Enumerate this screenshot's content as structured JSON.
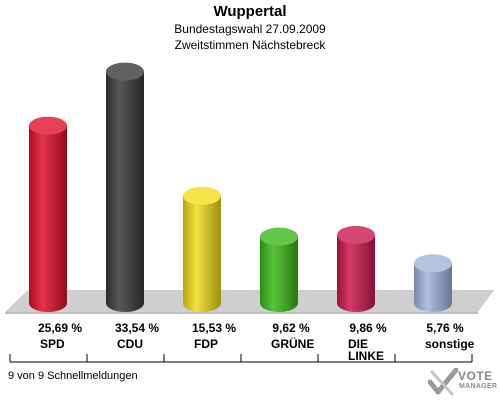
{
  "chart_data": {
    "type": "bar",
    "title": "Wuppertal",
    "subtitle_lines": [
      "Bundestagswahl 27.09.2009",
      "Zweitstimmen Nächstebreck"
    ],
    "categories": [
      "SPD",
      "CDU",
      "FDP",
      "GRÜNE",
      "DIE LINKE",
      "sonstige"
    ],
    "values": [
      25.69,
      33.54,
      15.53,
      9.62,
      9.86,
      5.76
    ],
    "value_labels": [
      "25,69 %",
      "33,54 %",
      "15,53 %",
      "9,62 %",
      "9,86 %",
      "5,76 %"
    ],
    "colors": [
      "#e0102a",
      "#3a3a3a",
      "#f2dc1c",
      "#3cb81a",
      "#cc1850",
      "#a3b4dc"
    ],
    "ylim": [
      0,
      35
    ],
    "grid": false,
    "legend": "none"
  },
  "footer": "9 von 9 Schnellmeldungen",
  "logo": {
    "line1": "VOTE",
    "line2": "MANAGER"
  }
}
